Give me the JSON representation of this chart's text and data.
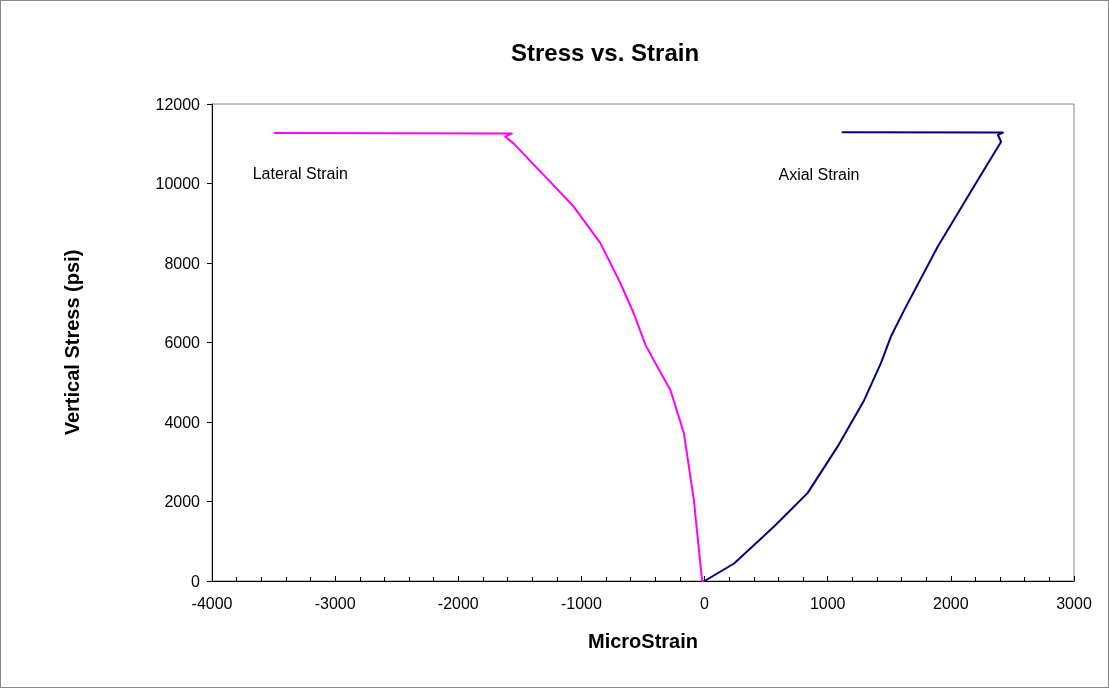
{
  "chart_data": {
    "type": "line",
    "title": "Stress vs. Strain",
    "xlabel": "MicroStrain",
    "ylabel": "Vertical Stress (psi)",
    "xlim": [
      -4000,
      3000
    ],
    "xticks": [
      -4000,
      -3000,
      -2000,
      -1000,
      0,
      1000,
      2000,
      3000
    ],
    "ylim": [
      0,
      12000
    ],
    "yticks": [
      0,
      2000,
      4000,
      6000,
      8000,
      10000,
      12000
    ],
    "grid": false,
    "legend": false,
    "marker": "none",
    "line_style": "solid",
    "series": [
      {
        "name": "Lateral Strain",
        "color": "#ff00ff",
        "x": [
          0,
          -20,
          -87,
          -168,
          -277,
          -399,
          -480,
          -575,
          -683,
          -846,
          -1063,
          -1280,
          -1552,
          -1619,
          -1565,
          -3491
        ],
        "values": [
          0,
          0,
          2040,
          3720,
          4800,
          5480,
          5940,
          6730,
          7490,
          8500,
          9420,
          10130,
          11010,
          11180,
          11260,
          11270
        ]
      },
      {
        "name": "Axial Strain",
        "color": "#000080",
        "x": [
          0,
          239,
          564,
          836,
          1080,
          1296,
          1432,
          1513,
          1622,
          1893,
          2219,
          2408,
          2382,
          2422,
          1120
        ],
        "values": [
          0,
          440,
          1370,
          2210,
          3380,
          4550,
          5480,
          6150,
          6820,
          8410,
          10090,
          11050,
          11220,
          11280,
          11290
        ]
      }
    ]
  }
}
